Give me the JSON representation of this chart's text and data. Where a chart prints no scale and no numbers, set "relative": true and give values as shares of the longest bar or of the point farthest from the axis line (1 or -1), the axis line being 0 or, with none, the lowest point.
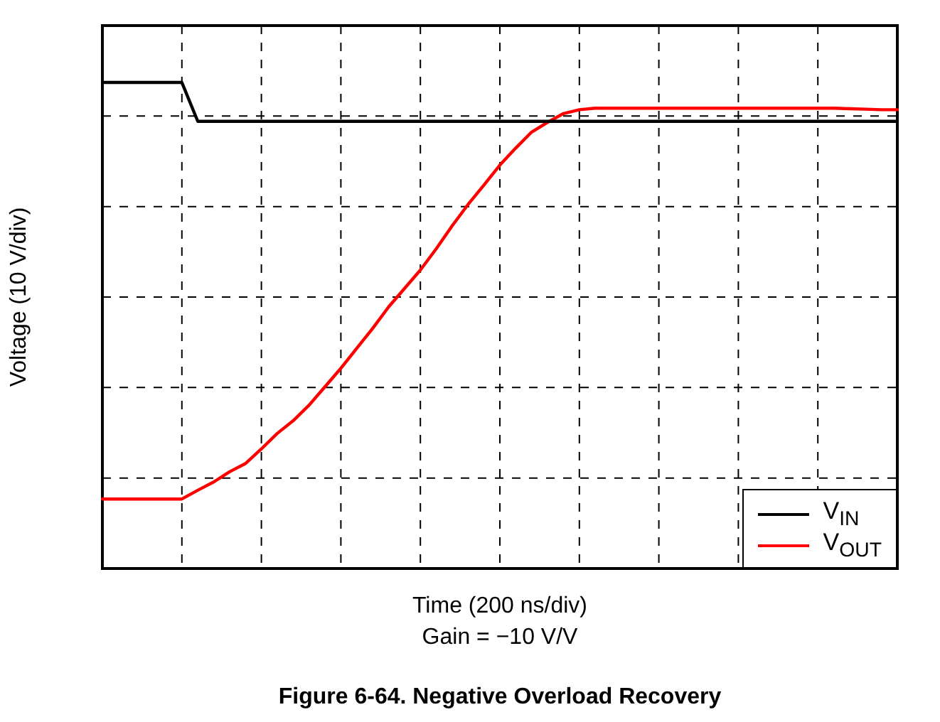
{
  "chart_data": {
    "type": "line",
    "relative": true,
    "xlabel": "Time (200 ns/div)",
    "ylabel": "Voltage (10 V/div)",
    "title": "Figure 6-64. Negative Overload Recovery",
    "annotations": [
      "Gain = −10 V/V"
    ],
    "grid": true,
    "legend": "bottom right",
    "marker": "none",
    "line_style": "solid",
    "categories": [
      null,
      null,
      null,
      null,
      null,
      null,
      null,
      null,
      null,
      null,
      null,
      null,
      null,
      null,
      null,
      null,
      null,
      null,
      null,
      null,
      null,
      null,
      null,
      null,
      null,
      null,
      null,
      null,
      null,
      null,
      null,
      null,
      null,
      null,
      null,
      null,
      null,
      null,
      null,
      null,
      null,
      null,
      null,
      null,
      null,
      null,
      null,
      null,
      null,
      null,
      null
    ],
    "series": [
      {
        "name": "V$_{IN}$",
        "color": "#000000",
        "values": [
          1,
          1,
          1,
          1,
          1,
          1,
          0.92,
          0.92,
          0.92,
          0.92,
          0.92,
          0.92,
          0.92,
          0.92,
          0.92,
          0.92,
          0.92,
          0.92,
          0.92,
          0.92,
          0.92,
          0.92,
          0.92,
          0.92,
          0.92,
          0.92,
          0.92,
          0.92,
          0.92,
          0.92,
          0.92,
          0.92,
          0.92,
          0.92,
          0.92,
          0.92,
          0.92,
          0.92,
          0.92,
          0.92,
          0.92,
          0.92,
          0.92,
          0.92,
          0.92,
          0.92,
          0.92,
          0.92,
          0.92,
          0.92,
          0.92
        ]
      },
      {
        "name": "V$_{OUT}$",
        "color": "#ff0000",
        "values": [
          0.143,
          0.143,
          0.143,
          0.143,
          0.143,
          0.143,
          0.161,
          0.178,
          0.199,
          0.216,
          0.246,
          0.278,
          0.304,
          0.336,
          0.374,
          0.412,
          0.453,
          0.494,
          0.538,
          0.576,
          0.614,
          0.658,
          0.705,
          0.749,
          0.789,
          0.83,
          0.865,
          0.898,
          0.918,
          0.936,
          0.944,
          0.947,
          0.947,
          0.947,
          0.947,
          0.947,
          0.947,
          0.947,
          0.947,
          0.947,
          0.947,
          0.947,
          0.947,
          0.947,
          0.947,
          0.947,
          0.947,
          0.946,
          0.945,
          0.944,
          0.944
        ]
      }
    ]
  }
}
